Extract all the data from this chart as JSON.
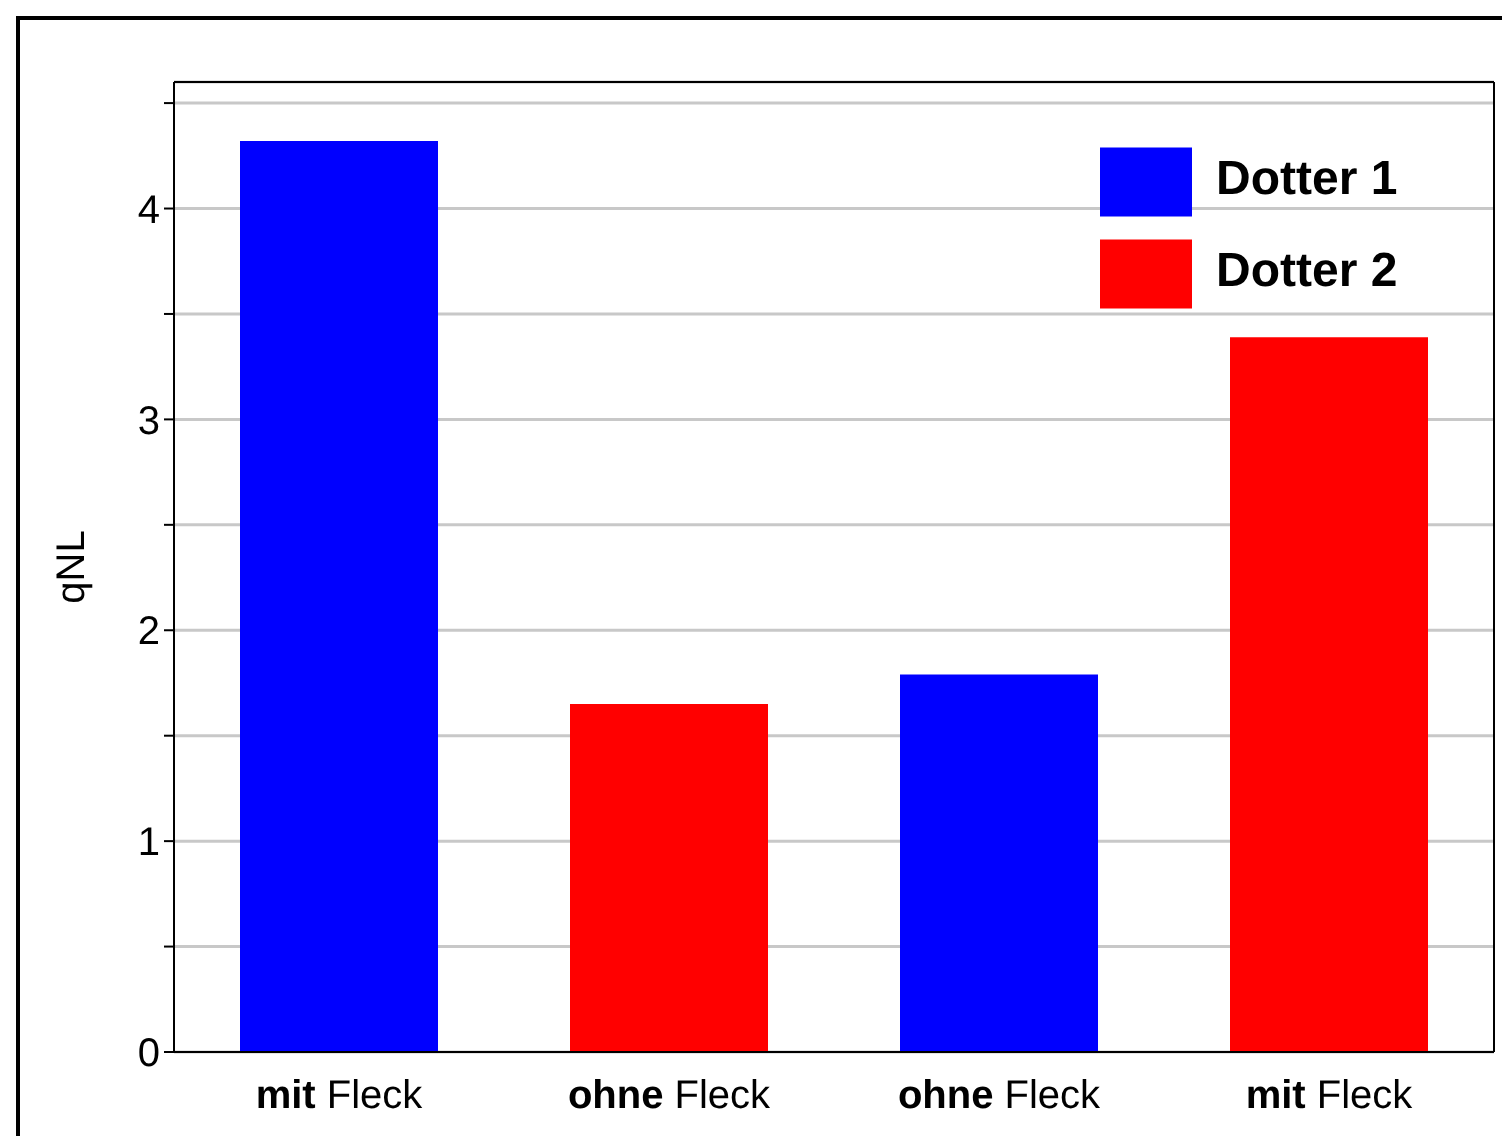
{
  "chart_data": {
    "type": "bar",
    "ylabel": "qNL",
    "categories": [
      "mit Fleck",
      "ohne Fleck",
      "ohne Fleck",
      "mit Fleck"
    ],
    "stacked": true,
    "series": [
      {
        "name": "Dotter 1",
        "color": "#0000ff",
        "values": [
          4.32,
          null,
          1.79,
          null
        ]
      },
      {
        "name": "Dotter 2",
        "color": "#ff0000",
        "values": [
          null,
          1.65,
          null,
          3.39
        ]
      }
    ],
    "ylim": [
      0,
      4.6
    ],
    "yticks": [
      0,
      {
        "value": 0.5,
        "label": null
      },
      1,
      {
        "value": 1.5,
        "label": null
      },
      2,
      {
        "value": 2.5,
        "label": null
      },
      3,
      {
        "value": 3.5,
        "label": null
      },
      4,
      {
        "value": 4.5,
        "label": null
      }
    ],
    "grid": "y",
    "legend": "top right"
  }
}
